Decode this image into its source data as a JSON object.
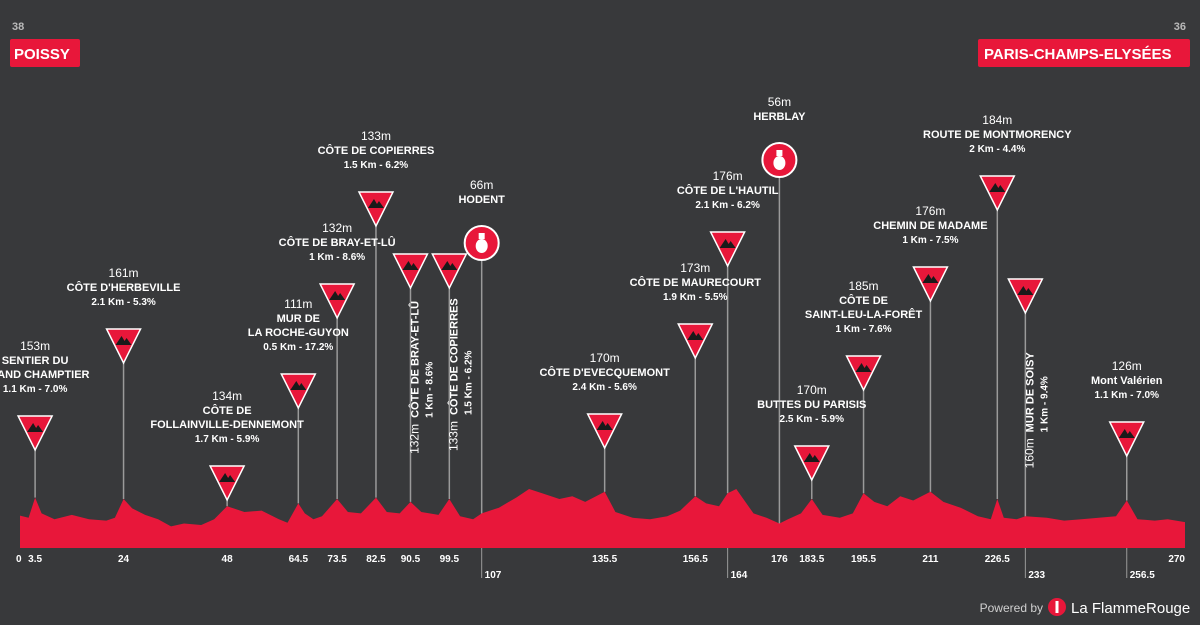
{
  "start": {
    "number": "38",
    "name": "POISSY"
  },
  "finish": {
    "number": "36",
    "name": "PARIS-CHAMPS-ELYSÉES"
  },
  "footer": {
    "powered_by": "Powered by",
    "brand": "La FlammeRouge"
  },
  "colors": {
    "background": "#38393b",
    "profile": "#e8173a",
    "text": "#ffffff"
  },
  "chart_data": {
    "type": "area",
    "x_unit": "km",
    "xlim": [
      0,
      270
    ],
    "profile": [
      [
        0,
        45
      ],
      [
        2,
        42
      ],
      [
        3.5,
        70
      ],
      [
        5,
        48
      ],
      [
        8,
        40
      ],
      [
        12,
        46
      ],
      [
        16,
        40
      ],
      [
        20,
        38
      ],
      [
        22,
        42
      ],
      [
        24,
        68
      ],
      [
        26,
        55
      ],
      [
        29,
        46
      ],
      [
        32,
        40
      ],
      [
        35,
        30
      ],
      [
        38,
        34
      ],
      [
        42,
        32
      ],
      [
        45,
        40
      ],
      [
        48,
        58
      ],
      [
        52,
        50
      ],
      [
        56,
        52
      ],
      [
        60,
        40
      ],
      [
        62,
        35
      ],
      [
        64.5,
        62
      ],
      [
        66,
        48
      ],
      [
        68,
        40
      ],
      [
        70,
        44
      ],
      [
        73.5,
        68
      ],
      [
        76,
        50
      ],
      [
        79,
        48
      ],
      [
        82.5,
        70
      ],
      [
        85,
        50
      ],
      [
        88,
        48
      ],
      [
        90.5,
        64
      ],
      [
        93,
        50
      ],
      [
        97,
        46
      ],
      [
        99.5,
        68
      ],
      [
        102,
        44
      ],
      [
        105,
        40
      ],
      [
        107,
        48
      ],
      [
        111,
        56
      ],
      [
        115,
        70
      ],
      [
        118,
        82
      ],
      [
        121,
        76
      ],
      [
        125,
        68
      ],
      [
        128,
        72
      ],
      [
        131,
        64
      ],
      [
        135.5,
        78
      ],
      [
        138,
        50
      ],
      [
        142,
        42
      ],
      [
        146,
        40
      ],
      [
        150,
        44
      ],
      [
        153,
        52
      ],
      [
        156.5,
        72
      ],
      [
        159,
        62
      ],
      [
        162,
        58
      ],
      [
        164,
        76
      ],
      [
        166,
        82
      ],
      [
        170,
        48
      ],
      [
        173,
        42
      ],
      [
        176,
        34
      ],
      [
        178,
        40
      ],
      [
        181,
        48
      ],
      [
        183.5,
        68
      ],
      [
        186,
        46
      ],
      [
        190,
        42
      ],
      [
        193,
        48
      ],
      [
        195.5,
        76
      ],
      [
        198,
        64
      ],
      [
        201,
        58
      ],
      [
        204,
        72
      ],
      [
        207,
        66
      ],
      [
        211,
        78
      ],
      [
        214,
        64
      ],
      [
        218,
        56
      ],
      [
        222,
        44
      ],
      [
        225,
        40
      ],
      [
        226.5,
        68
      ],
      [
        228,
        42
      ],
      [
        231,
        40
      ],
      [
        233,
        44
      ],
      [
        238,
        42
      ],
      [
        242,
        38
      ],
      [
        246,
        40
      ],
      [
        250,
        42
      ],
      [
        254,
        44
      ],
      [
        256.5,
        66
      ],
      [
        259,
        40
      ],
      [
        263,
        38
      ],
      [
        266,
        40
      ],
      [
        270,
        36
      ]
    ],
    "ticks": [
      {
        "km": 0,
        "label": "0",
        "level": "top"
      },
      {
        "km": 3.5,
        "label": "3.5",
        "level": "top"
      },
      {
        "km": 24,
        "label": "24",
        "level": "top"
      },
      {
        "km": 48,
        "label": "48",
        "level": "top"
      },
      {
        "km": 64.5,
        "label": "64.5",
        "level": "top"
      },
      {
        "km": 73.5,
        "label": "73.5",
        "level": "top"
      },
      {
        "km": 82.5,
        "label": "82.5",
        "level": "top"
      },
      {
        "km": 90.5,
        "label": "90.5",
        "level": "top"
      },
      {
        "km": 99.5,
        "label": "99.5",
        "level": "top"
      },
      {
        "km": 107,
        "label": "107",
        "level": "bottom"
      },
      {
        "km": 135.5,
        "label": "135.5",
        "level": "top"
      },
      {
        "km": 156.5,
        "label": "156.5",
        "level": "top"
      },
      {
        "km": 164,
        "label": "164",
        "level": "bottom"
      },
      {
        "km": 176,
        "label": "176",
        "level": "top"
      },
      {
        "km": 183.5,
        "label": "183.5",
        "level": "top"
      },
      {
        "km": 195.5,
        "label": "195.5",
        "level": "top"
      },
      {
        "km": 211,
        "label": "211",
        "level": "top"
      },
      {
        "km": 226.5,
        "label": "226.5",
        "level": "top"
      },
      {
        "km": 233,
        "label": "233",
        "level": "bottom"
      },
      {
        "km": 256.5,
        "label": "256.5",
        "level": "bottom"
      },
      {
        "km": 270,
        "label": "270",
        "level": "top"
      }
    ],
    "climbs": [
      {
        "km": 3.5,
        "marker": "climb",
        "alt": "153m",
        "name": [
          "SENTIER DU",
          "GRAND CHAMPTIER"
        ],
        "detail": "1.1 Km - 7.0%"
      },
      {
        "km": 24,
        "marker": "climb",
        "alt": "161m",
        "name": [
          "CÔTE D'HERBEVILLE"
        ],
        "detail": "2.1 Km - 5.3%"
      },
      {
        "km": 48,
        "marker": "climb",
        "alt": "134m",
        "name": [
          "CÔTE DE",
          "FOLLAINVILLE-DENNEMONT"
        ],
        "detail": "1.7 Km - 5.9%"
      },
      {
        "km": 64.5,
        "marker": "climb",
        "alt": "111m",
        "name": [
          "MUR DE",
          "LA ROCHE-GUYON"
        ],
        "detail": "0.5 Km - 17.2%"
      },
      {
        "km": 73.5,
        "marker": "climb",
        "alt": "132m",
        "name": [
          "CÔTE DE BRAY-ET-LÛ"
        ],
        "detail": "1 Km - 8.6%"
      },
      {
        "km": 82.5,
        "marker": "climb",
        "alt": "133m",
        "name": [
          "CÔTE DE COPIERRES"
        ],
        "detail": "1.5 Km - 6.2%"
      },
      {
        "km": 90.5,
        "marker": "climb",
        "vertical": true,
        "alt": "132m",
        "name": [
          "CÔTE DE BRAY-ET-LÛ"
        ],
        "detail": "1 Km - 8.6%"
      },
      {
        "km": 99.5,
        "marker": "climb",
        "vertical": true,
        "alt": "133m",
        "name": [
          "CÔTE DE COPIERRES"
        ],
        "detail": "1.5 Km - 6.2%"
      },
      {
        "km": 107,
        "marker": "sprint",
        "alt": "66m",
        "name": [
          "HODENT"
        ],
        "detail": ""
      },
      {
        "km": 135.5,
        "marker": "climb",
        "alt": "170m",
        "name": [
          "CÔTE D'EVECQUEMONT"
        ],
        "detail": "2.4 Km - 5.6%"
      },
      {
        "km": 156.5,
        "marker": "climb",
        "alt": "173m",
        "name": [
          "CÔTE DE MAURECOURT"
        ],
        "detail": "1.9 Km - 5.5%"
      },
      {
        "km": 164,
        "marker": "climb",
        "alt": "176m",
        "name": [
          "CÔTE DE L'HAUTIL"
        ],
        "detail": "2.1 Km - 6.2%"
      },
      {
        "km": 176,
        "marker": "sprint",
        "alt": "56m",
        "name": [
          "HERBLAY"
        ],
        "detail": ""
      },
      {
        "km": 183.5,
        "marker": "climb",
        "alt": "170m",
        "name": [
          "BUTTES DU PARISIS"
        ],
        "detail": "2.5 Km - 5.9%"
      },
      {
        "km": 195.5,
        "marker": "climb",
        "alt": "185m",
        "name": [
          "CÔTE DE",
          "SAINT-LEU-LA-FORÊT"
        ],
        "detail": "1 Km - 7.6%"
      },
      {
        "km": 211,
        "marker": "climb",
        "alt": "176m",
        "name": [
          "CHEMIN DE MADAME"
        ],
        "detail": "1 Km - 7.5%"
      },
      {
        "km": 226.5,
        "marker": "climb",
        "alt": "184m",
        "name": [
          "ROUTE DE MONTMORENCY"
        ],
        "detail": "2 Km - 4.4%"
      },
      {
        "km": 233,
        "marker": "climb",
        "vertical": true,
        "alt": "160m",
        "name": [
          "MUR DE SOISY"
        ],
        "detail": "1 Km - 9.4%"
      },
      {
        "km": 256.5,
        "marker": "climb",
        "alt": "126m",
        "name": [
          "Mont Valérien"
        ],
        "detail": "1.1 Km - 7.0%"
      }
    ]
  }
}
